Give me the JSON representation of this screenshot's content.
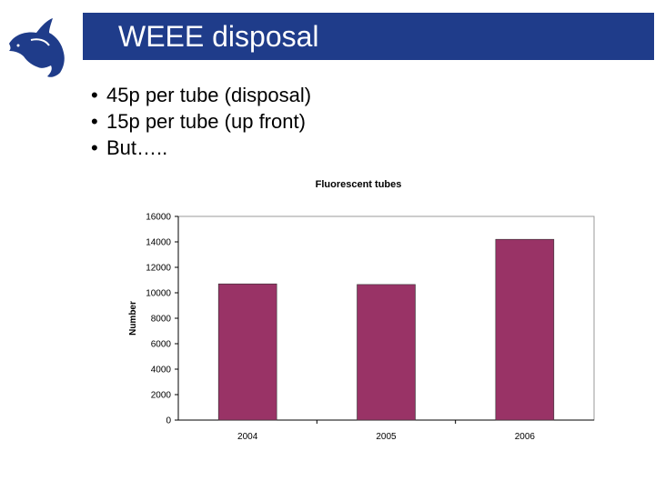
{
  "slide": {
    "title": "WEEE disposal",
    "bullets": [
      "45p per tube (disposal)",
      "15p per tube (up front)",
      "But….."
    ]
  },
  "colors": {
    "title_bar": "#1f3c8a",
    "logo": "#1f3c8a",
    "bar": "#993366"
  },
  "chart_data": {
    "type": "bar",
    "title": "Fluorescent tubes",
    "xlabel": "",
    "ylabel": "Number",
    "categories": [
      "2004",
      "2005",
      "2006"
    ],
    "values": [
      10700,
      10650,
      14200
    ],
    "ylim": [
      0,
      16000
    ],
    "yticks": [
      0,
      2000,
      4000,
      6000,
      8000,
      10000,
      12000,
      14000,
      16000
    ],
    "grid": false,
    "legend": "none"
  }
}
